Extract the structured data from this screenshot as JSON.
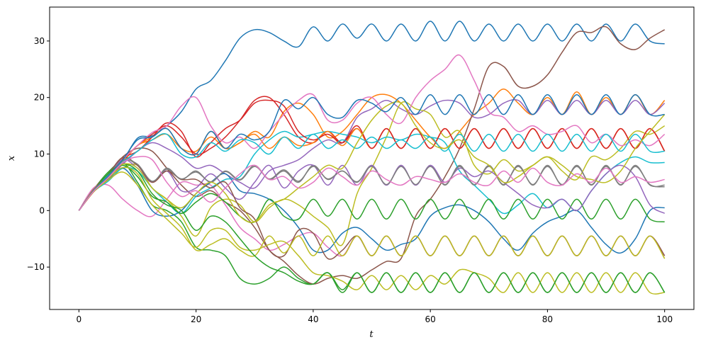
{
  "chart_data": {
    "type": "line",
    "title": "",
    "xlabel": "t",
    "ylabel": "x",
    "xlim": [
      -5,
      105
    ],
    "ylim": [
      -17.5,
      36
    ],
    "x_ticks": [
      0,
      20,
      40,
      60,
      80,
      100
    ],
    "y_ticks": [
      -10,
      0,
      10,
      20,
      30
    ],
    "y_tick_labels": [
      "−10",
      "0",
      "10",
      "20",
      "30"
    ],
    "grid": false,
    "legend": "none",
    "x": [
      0,
      2.5,
      5,
      7.5,
      10,
      12.5,
      15,
      17.5,
      20,
      22.5,
      25,
      27.5,
      30,
      32.5,
      35,
      37.5,
      40,
      42.5,
      45,
      47.5,
      50,
      52.5,
      55,
      57.5,
      60,
      62.5,
      65,
      67.5,
      70,
      72.5,
      75,
      77.5,
      80,
      82.5,
      85,
      87.5,
      90,
      92.5,
      95,
      97.5,
      100
    ],
    "series": [
      {
        "color": "#1f77b4",
        "values": [
          0,
          3.6,
          6.2,
          8.8,
          12.8,
          13.2,
          15,
          17.5,
          21.5,
          23,
          26.5,
          30.5,
          32,
          31.5,
          30,
          29,
          32.5,
          30,
          33,
          30.5,
          33,
          30,
          33,
          30,
          33.5,
          30,
          33.5,
          30,
          33,
          30,
          33,
          30,
          33,
          30,
          33,
          30,
          33,
          30,
          33,
          30,
          29.5
        ]
      },
      {
        "color": "#ff7f0e",
        "values": [
          0,
          3.3,
          5.5,
          8.5,
          11.5,
          12.5,
          13.5,
          11,
          10.5,
          13,
          11,
          12,
          14,
          13,
          17.5,
          19,
          17,
          13,
          14,
          17,
          20,
          20.5,
          19,
          16,
          13,
          11,
          14,
          17,
          19,
          21.5,
          19,
          17,
          20,
          17,
          21,
          17,
          20,
          17,
          20.5,
          17,
          19.5
        ]
      },
      {
        "color": "#2ca02c",
        "values": [
          0,
          3.7,
          6.8,
          8.5,
          5,
          1,
          0,
          -2,
          -6.5,
          -7,
          -8,
          -12,
          -13,
          -12,
          -10,
          -12,
          -13,
          -11,
          -14,
          -11,
          -14.5,
          -11,
          -14.5,
          -11,
          -14.5,
          -11,
          -14.5,
          -11,
          -14.5,
          -11,
          -14.5,
          -11,
          -14.5,
          -11,
          -14.5,
          -11,
          -14.5,
          -11,
          -14.5,
          -11,
          -14.5
        ]
      },
      {
        "color": "#d62728",
        "values": [
          0,
          3.5,
          6,
          9,
          11.5,
          13.5,
          15,
          13,
          10,
          11,
          13,
          16,
          19.5,
          20,
          17,
          13,
          12,
          14,
          12,
          14.5,
          11,
          14.5,
          11,
          14.5,
          11,
          14.5,
          11,
          14.5,
          11,
          14.5,
          11,
          14.5,
          11,
          14.5,
          11,
          14.5,
          11,
          14.5,
          11,
          14.5,
          10.5
        ]
      },
      {
        "color": "#9467bd",
        "values": [
          0,
          3.4,
          5.6,
          8.2,
          10.5,
          12,
          11,
          9.5,
          7.5,
          8,
          6.5,
          5,
          4,
          7,
          8,
          9,
          11,
          12.5,
          12,
          16.5,
          18,
          19.5,
          18,
          17,
          18.5,
          19.5,
          19,
          16.5,
          17,
          19,
          19.5,
          17,
          19.5,
          17,
          19.5,
          17,
          19.5,
          17,
          19.5,
          17,
          19
        ]
      },
      {
        "color": "#8c564b",
        "values": [
          0,
          3.8,
          6.5,
          9.5,
          11,
          10.5,
          7.5,
          4.5,
          2.5,
          3.5,
          1.5,
          0,
          -3,
          -7,
          -9,
          -11.5,
          -13,
          -12,
          -11.5,
          -12,
          -10.5,
          -9,
          -8.5,
          -1,
          2,
          6,
          11,
          18,
          25.5,
          25.5,
          22,
          22,
          24,
          28,
          31.5,
          31.5,
          32.5,
          29.5,
          28.5,
          30.5,
          32
        ]
      },
      {
        "color": "#e377c2",
        "values": [
          0,
          4,
          4.5,
          2,
          0,
          -1,
          2,
          5,
          4.5,
          4.5,
          1,
          -3,
          -5,
          -7,
          -6,
          -4.5,
          -4,
          -6.5,
          -8,
          -4.5,
          -8,
          -4.5,
          -8,
          -4.5,
          -8,
          -4.5,
          -8,
          -4.5,
          -8,
          -4.5,
          -8,
          -4.5,
          -8,
          -4.5,
          -8,
          -4.5,
          -8,
          -4.5,
          -8,
          -4.5,
          -8
        ]
      },
      {
        "color": "#7f7f7f",
        "values": [
          0,
          3.6,
          6,
          9,
          8,
          5,
          7.5,
          5.5,
          7,
          5,
          7,
          5.5,
          8,
          5.5,
          7,
          5,
          8,
          5.5,
          7,
          5,
          8,
          4.5,
          8,
          4.5,
          8,
          4.5,
          8,
          4.5,
          8,
          4.5,
          8,
          4.5,
          8,
          4.5,
          8,
          4.5,
          8,
          4.5,
          8,
          4.5,
          4.5
        ]
      },
      {
        "color": "#bcbd22",
        "values": [
          0,
          3.5,
          5.8,
          7.5,
          8,
          4,
          2,
          -1,
          -4.5,
          0.5,
          2,
          1,
          -2,
          0.5,
          2,
          1,
          -1,
          -3,
          -6,
          3,
          7.5,
          13,
          19,
          18,
          17,
          13,
          14,
          8,
          6.5,
          9,
          7,
          8,
          9.5,
          7,
          5.5,
          9.5,
          9,
          11,
          14,
          13.5,
          15
        ]
      },
      {
        "color": "#17becf",
        "values": [
          0,
          3.3,
          5.2,
          7.5,
          7,
          4,
          1.5,
          -0.5,
          2.5,
          4,
          5.5,
          6,
          10,
          12.5,
          14,
          13,
          13.5,
          14,
          13.5,
          13,
          12,
          13,
          12.5,
          13.5,
          13,
          12,
          7,
          4.5,
          2,
          -0.5,
          1,
          3,
          0.5,
          2,
          0,
          3.5,
          6.5,
          8.5,
          9.5,
          8.5,
          8.5
        ]
      },
      {
        "color": "#1f77b4",
        "values": [
          0,
          3.5,
          5.5,
          7.5,
          4.5,
          0,
          -1,
          0,
          3,
          5,
          6.5,
          3.5,
          3,
          2,
          0,
          -3,
          -7,
          -7,
          -4,
          -3,
          -5,
          -7,
          -6,
          -5,
          -1,
          0.5,
          1,
          0,
          -2,
          -5,
          -7,
          -4,
          -2,
          -1,
          0,
          -3,
          -6,
          -7.5,
          -5,
          0,
          0.5
        ]
      },
      {
        "color": "#ff7f0e",
        "values": [
          0,
          3.6,
          6,
          8.8,
          11.5,
          13,
          14.5,
          11,
          10,
          14,
          11,
          12,
          13.5,
          11,
          13,
          11.5,
          12,
          14,
          11.5,
          14.5,
          11,
          14.5,
          11,
          14.5,
          11,
          14.5,
          11,
          14.5,
          11,
          14.5,
          11,
          14.5,
          11,
          14.5,
          11,
          14.5,
          11,
          14.5,
          11,
          14.5,
          10.5
        ]
      },
      {
        "color": "#2ca02c",
        "values": [
          0,
          3.6,
          6.3,
          8,
          6,
          2.5,
          1.5,
          -0.5,
          1.5,
          3,
          1.5,
          -1,
          -2,
          2,
          -1,
          -1.5,
          2,
          -1,
          2,
          -1.5,
          2,
          -1.5,
          2,
          -1.5,
          2,
          -1.5,
          2,
          -1.5,
          2,
          -1.5,
          2,
          -1.5,
          2,
          -1.5,
          2,
          -1.5,
          2,
          -1.5,
          2,
          -1.5,
          -2
        ]
      },
      {
        "color": "#d62728",
        "values": [
          0,
          3.3,
          5.8,
          9.2,
          10.5,
          13,
          15.5,
          14,
          9.5,
          12,
          14.5,
          16,
          19,
          19.5,
          18.5,
          14,
          12.5,
          13.5,
          12,
          15,
          11,
          14.5,
          11,
          14.5,
          11,
          14.5,
          11,
          14.5,
          11,
          14.5,
          11,
          14.5,
          11,
          14.5,
          11,
          14.5,
          11,
          14.5,
          11,
          14.5,
          10.5
        ]
      },
      {
        "color": "#9467bd",
        "values": [
          0,
          3.5,
          6.2,
          9,
          7.5,
          5,
          7,
          3.5,
          4,
          6.5,
          4,
          2,
          5,
          8,
          4,
          7,
          8,
          4.5,
          8,
          4.5,
          8,
          4.5,
          8,
          4.5,
          8,
          5,
          7.5,
          6,
          7,
          5,
          3,
          1,
          0.5,
          2,
          0,
          3.5,
          6.5,
          8,
          6,
          1,
          -0.5
        ]
      },
      {
        "color": "#8c564b",
        "values": [
          0,
          3.7,
          6.4,
          9.4,
          8,
          5,
          7,
          5.5,
          5.5,
          4,
          5,
          0.5,
          -1.5,
          -7,
          -8,
          -3.5,
          -4,
          -8.5,
          -7,
          -4.5,
          -8,
          -4.5,
          -8,
          -4.5,
          -8,
          -4.5,
          -8,
          -4.5,
          -8,
          -4.5,
          -8,
          -4.5,
          -8,
          -4.5,
          -8,
          -4.5,
          -8,
          -4.5,
          -8,
          -4.5,
          -8
        ]
      },
      {
        "color": "#e377c2",
        "values": [
          0,
          3.4,
          5.9,
          9,
          11.5,
          13.8,
          15,
          18.5,
          20,
          15,
          12,
          13,
          11,
          14,
          17,
          19.5,
          20.5,
          16,
          16,
          19,
          20,
          17,
          15.5,
          20,
          23,
          25,
          27.5,
          23,
          17.5,
          16.5,
          14,
          15,
          13.5,
          14,
          15,
          12,
          13.5,
          11.5,
          12.5,
          11.5,
          13.5
        ]
      },
      {
        "color": "#7f7f7f",
        "values": [
          0,
          3.5,
          6.1,
          8.9,
          8.2,
          5.2,
          7.3,
          5.6,
          6.8,
          5.1,
          6.9,
          5.4,
          7.8,
          5.6,
          7.2,
          5.2,
          7.8,
          5.6,
          7,
          5.1,
          7.8,
          4.6,
          7.8,
          4.6,
          7.8,
          4.6,
          7.8,
          4.6,
          7.8,
          4.6,
          7.8,
          4.6,
          7.8,
          4.6,
          7.8,
          4.6,
          7.8,
          4.6,
          7.8,
          4.6,
          4.2
        ]
      },
      {
        "color": "#bcbd22",
        "values": [
          0,
          3.4,
          5.7,
          7.6,
          6.5,
          2,
          -0.5,
          -3,
          -7,
          -6,
          -5,
          -7,
          -8,
          -4.5,
          -7.5,
          -4.5,
          -8,
          -4.5,
          -8,
          -4.5,
          -8,
          -4.5,
          -8,
          -4.5,
          -8,
          -4.5,
          -8,
          -4.5,
          -8,
          -4.5,
          -8,
          -4.5,
          -8,
          -4.5,
          -8,
          -4.5,
          -8,
          -4.5,
          -8,
          -4.5,
          -8.5
        ]
      },
      {
        "color": "#17becf",
        "values": [
          0,
          3.6,
          6.2,
          8.6,
          10.5,
          12.5,
          13.5,
          10,
          9.5,
          12,
          10.5,
          12.5,
          12,
          10,
          13,
          11,
          13.5,
          11,
          12.5,
          11,
          13,
          11,
          12.5,
          11,
          13,
          10.5,
          13.5,
          10.5,
          13.5,
          10.5,
          13.5,
          10.5,
          13.5,
          10.5,
          13.5,
          10.5,
          13.5,
          10.5,
          13.5,
          10.5,
          10.5
        ]
      },
      {
        "color": "#bcbd22",
        "values": [
          0,
          3.3,
          5.4,
          6.8,
          4.5,
          1,
          -1.5,
          -4,
          -6.5,
          -3.5,
          -3.5,
          -6.5,
          -7,
          -6,
          -5.5,
          -8,
          -11,
          -11.5,
          -12.5,
          -14,
          -11.5,
          -14,
          -11.5,
          -14,
          -11.5,
          -13,
          -10.5,
          -11,
          -12,
          -14.5,
          -11,
          -14.5,
          -11,
          -14.5,
          -11,
          -14.5,
          -11,
          -14.5,
          -11,
          -14.5,
          -14.5
        ]
      },
      {
        "color": "#2ca02c",
        "values": [
          0,
          3.5,
          6.5,
          8.2,
          7,
          3,
          1,
          0,
          -3.5,
          -1,
          -2,
          -5,
          -8,
          -10,
          -11,
          -12.5,
          -13,
          -11,
          -14.5,
          -11,
          -14.5,
          -11,
          -14.5,
          -11,
          -14.5,
          -11,
          -14.5,
          -11,
          -14.5,
          -11,
          -14.5,
          -11,
          -14.5,
          -11,
          -14.5,
          -11,
          -14.5,
          -11,
          -14.5,
          -11,
          -14.5
        ]
      },
      {
        "color": "#bcbd22",
        "values": [
          0,
          3.6,
          6,
          8.2,
          7.5,
          4,
          2,
          0.5,
          3,
          5,
          3,
          -1,
          -2,
          1,
          2,
          4,
          6,
          8,
          7.5,
          12,
          16,
          18.5,
          19,
          15,
          12,
          11,
          12.5,
          9.5,
          8,
          5,
          6,
          8,
          9.5,
          8,
          6,
          5.5,
          5,
          7,
          11,
          14,
          17
        ]
      },
      {
        "color": "#1f77b4",
        "values": [
          0,
          3.5,
          6.1,
          9,
          12.5,
          13,
          14.5,
          11,
          10,
          14,
          11,
          13.5,
          12.5,
          14,
          19.5,
          18,
          20,
          17,
          16.5,
          19.5,
          19,
          17.5,
          20,
          17,
          20.5,
          17,
          20.5,
          17,
          20.5,
          17,
          20.5,
          17,
          20.5,
          17,
          20.5,
          17,
          20.5,
          17,
          20.5,
          17,
          17
        ]
      },
      {
        "color": "#e377c2",
        "values": [
          0,
          3.4,
          5.8,
          8.5,
          9.5,
          9,
          5,
          2.5,
          3.5,
          1.5,
          4,
          6.5,
          8,
          5.5,
          6,
          4,
          5,
          7.5,
          6,
          4.5,
          7,
          5.5,
          4.5,
          6,
          5.5,
          5,
          6.5,
          5,
          4.5,
          7,
          5,
          7.5,
          5,
          4.5,
          6.5,
          5,
          7.5,
          5,
          6,
          5,
          5.5
        ]
      }
    ]
  }
}
